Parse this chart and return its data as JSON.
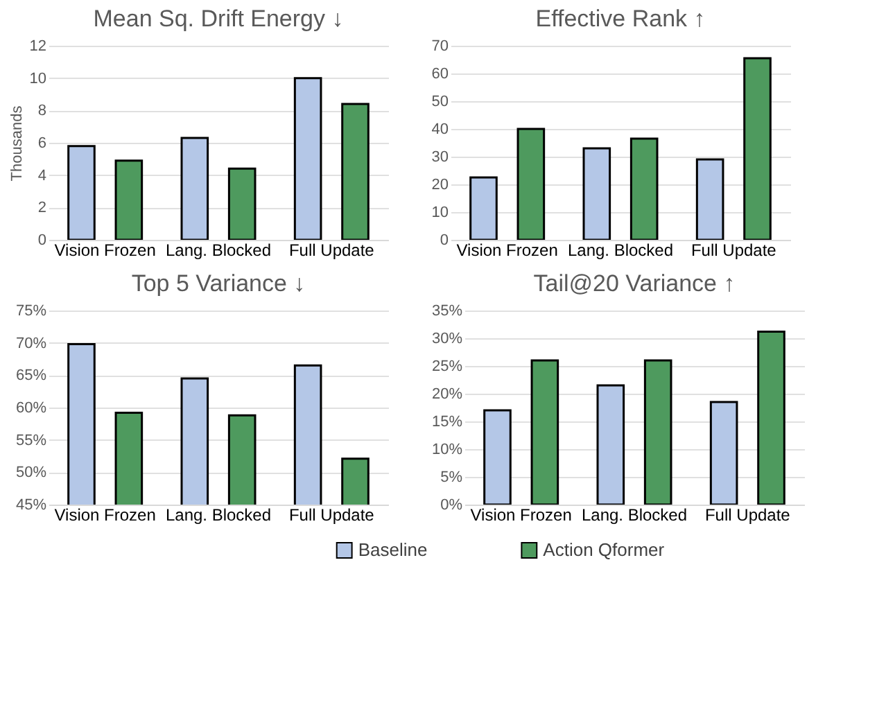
{
  "chart_data": [
    {
      "type": "bar",
      "title": "Mean Sq. Drift Energy ↓",
      "ylabel": "Thousands",
      "categories": [
        "Vision Frozen",
        "Lang. Blocked",
        "Full Update"
      ],
      "ylim": [
        0,
        12
      ],
      "yticks": [
        0,
        2,
        4,
        6,
        8,
        10,
        12
      ],
      "grid": "y",
      "series": [
        {
          "color": "#b4c7e7",
          "values": [
            5.8,
            6.3,
            10
          ]
        },
        {
          "color": "#4e9a5e",
          "values": [
            4.9,
            4.4,
            8.4
          ]
        }
      ]
    },
    {
      "type": "bar",
      "title": "Effective Rank ↑",
      "categories": [
        "Vision Frozen",
        "Lang. Blocked",
        "Full Update"
      ],
      "ylim": [
        0,
        70
      ],
      "yticks": [
        0,
        10,
        20,
        30,
        40,
        50,
        60,
        70
      ],
      "grid": "y",
      "series": [
        {
          "color": "#b4c7e7",
          "values": [
            22.5,
            33,
            29
          ]
        },
        {
          "color": "#4e9a5e",
          "values": [
            40,
            36.5,
            65.5
          ]
        }
      ]
    },
    {
      "type": "bar",
      "title": "Top 5 Variance ↓",
      "categories": [
        "Vision Frozen",
        "Lang. Blocked",
        "Full Update"
      ],
      "ylim": [
        45,
        75
      ],
      "yticks": [
        {
          "value": 45,
          "label": "45%"
        },
        {
          "value": 50,
          "label": "50%"
        },
        {
          "value": 55,
          "label": "55%"
        },
        {
          "value": 60,
          "label": "60%"
        },
        {
          "value": 65,
          "label": "65%"
        },
        {
          "value": 70,
          "label": "70%"
        },
        {
          "value": 75,
          "label": "75%"
        }
      ],
      "grid": "y",
      "series": [
        {
          "color": "#b4c7e7",
          "values": [
            69.8,
            64.5,
            66.5
          ]
        },
        {
          "color": "#4e9a5e",
          "values": [
            59.2,
            58.8,
            52.1
          ]
        }
      ]
    },
    {
      "type": "bar",
      "title": "Tail@20 Variance ↑",
      "categories": [
        "Vision Frozen",
        "Lang. Blocked",
        "Full Update"
      ],
      "ylim": [
        0,
        35
      ],
      "yticks": [
        {
          "value": 0,
          "label": "0%"
        },
        {
          "value": 5,
          "label": "5%"
        },
        {
          "value": 10,
          "label": "10%"
        },
        {
          "value": 15,
          "label": "15%"
        },
        {
          "value": 20,
          "label": "20%"
        },
        {
          "value": 25,
          "label": "25%"
        },
        {
          "value": 30,
          "label": "30%"
        },
        {
          "value": 35,
          "label": "35%"
        }
      ],
      "grid": "y",
      "legend": "bottom",
      "series": [
        {
          "name": "Baseline",
          "color": "#b4c7e7",
          "values": [
            17,
            21.5,
            18.5
          ]
        },
        {
          "name": "Action Qformer",
          "color": "#4e9a5e",
          "values": [
            26,
            26,
            31.2
          ]
        }
      ]
    }
  ]
}
